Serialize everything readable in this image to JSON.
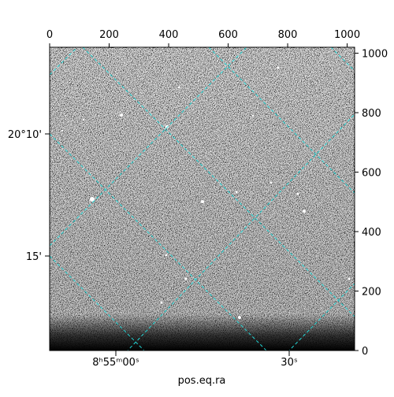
{
  "chart_data": {
    "type": "image",
    "xlabel": "pos.eq.ra",
    "xlim": [
      0,
      1025
    ],
    "xticks": [
      0,
      200,
      400,
      600,
      800,
      1000
    ],
    "ylim": [
      0,
      1020
    ],
    "yticks": [
      0,
      200,
      400,
      600,
      800,
      1000
    ],
    "ra_labels": [
      "8ʰ55ᵐ00ˢ",
      "30ˢ"
    ],
    "dec_labels": [
      "20°10'",
      "15'"
    ]
  }
}
